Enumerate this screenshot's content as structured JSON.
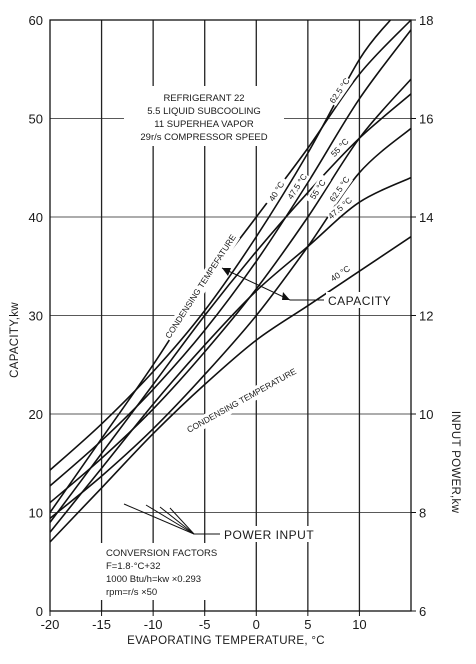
{
  "chart_data": {
    "type": "line",
    "xlabel": "EVAPORATING TEMPERATURE, °C",
    "ylabel_left": "CAPACITY,kw",
    "ylabel_right": "INPUT POWER,kw",
    "xlim": [
      -20,
      15
    ],
    "ylim_left": [
      0,
      60
    ],
    "ylim_right": [
      6,
      18
    ],
    "x_ticks": [
      -20,
      -15,
      -10,
      -5,
      0,
      5,
      10
    ],
    "x_tick_labels": [
      "-20",
      "-15",
      "-10",
      "-5",
      "0",
      "5",
      "10"
    ],
    "y_left_ticks": [
      0,
      10,
      20,
      30,
      40,
      50,
      60
    ],
    "y_left_tick_labels": [
      "0",
      "10",
      "20",
      "30",
      "40",
      "50",
      "60"
    ],
    "y_right_ticks": [
      6,
      8,
      10,
      12,
      14,
      16,
      18
    ],
    "y_right_tick_labels": [
      "6",
      "8",
      "10",
      "12",
      "14",
      "16",
      "18"
    ],
    "grid": true,
    "notes": [
      "REFRIGERANT 22",
      "5.5 LIQUID SUBCOOLING",
      "11 SUPERHEA VAPOR",
      "29r/s COMPRESSOR SPEED"
    ],
    "conversion_factors": [
      "CONVERSION FACTORS",
      "F=1.8·°C+32",
      "1000 Btu/h=kw ×0.293",
      "rpm=r/s ×50"
    ],
    "annotations": {
      "capacity_group": "CONDENSING TEMPEFATURE",
      "capacity_callout": "CAPACITY",
      "power_group": "CONDENSING TEMPERATURE",
      "power_callout": "POWER INPUT"
    },
    "capacity_series": [
      {
        "name": "40 °C",
        "axis": "left",
        "x": [
          -20,
          -15,
          -10,
          -5,
          0,
          5,
          10,
          13
        ],
        "y": [
          14.3,
          19.0,
          24.3,
          30.5,
          38.0,
          46.5,
          56.0,
          60.0
        ]
      },
      {
        "name": "47.5 °C",
        "axis": "left",
        "x": [
          -20,
          -15,
          -10,
          -5,
          0,
          5,
          10,
          15
        ],
        "y": [
          12.7,
          17.3,
          22.5,
          28.5,
          35.5,
          43.5,
          52.0,
          59.0
        ]
      },
      {
        "name": "55 °C",
        "axis": "left",
        "x": [
          -20,
          -15,
          -10,
          -5,
          0,
          5,
          10,
          15
        ],
        "y": [
          11.0,
          15.5,
          20.5,
          26.3,
          32.7,
          40.0,
          48.0,
          54.0
        ]
      },
      {
        "name": "62.5 °C",
        "axis": "left",
        "x": [
          -20,
          -15,
          -10,
          -5,
          0,
          5,
          10,
          15
        ],
        "y": [
          9.4,
          13.7,
          18.5,
          24.0,
          30.0,
          37.0,
          44.5,
          49.0
        ]
      }
    ],
    "power_series": [
      {
        "name": "62.5 °C",
        "axis": "right",
        "x": [
          -20,
          -15,
          -10,
          -5,
          0,
          5,
          10,
          15
        ],
        "y": [
          8.0,
          9.5,
          11.0,
          12.6,
          14.0,
          15.4,
          16.9,
          18.0
        ]
      },
      {
        "name": "55 °C",
        "axis": "right",
        "x": [
          -20,
          -15,
          -10,
          -5,
          0,
          5,
          10,
          15
        ],
        "y": [
          7.8,
          9.2,
          10.6,
          12.0,
          13.3,
          14.5,
          15.6,
          16.5
        ]
      },
      {
        "name": "47.5 °C",
        "axis": "right",
        "x": [
          -20,
          -15,
          -10,
          -5,
          0,
          5,
          10,
          15
        ],
        "y": [
          7.6,
          8.9,
          10.2,
          11.4,
          12.5,
          13.4,
          14.3,
          14.8
        ]
      },
      {
        "name": "40 °C",
        "axis": "right",
        "x": [
          -20,
          -15,
          -10,
          -5,
          0,
          5,
          10,
          15
        ],
        "y": [
          7.4,
          8.5,
          9.6,
          10.6,
          11.5,
          12.2,
          12.9,
          13.6
        ]
      }
    ]
  }
}
